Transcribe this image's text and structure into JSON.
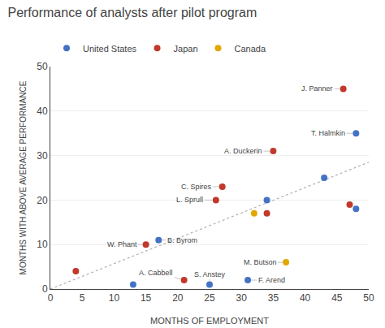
{
  "chart_data": {
    "type": "scatter",
    "title": "Performance of analysts after pilot program",
    "xlabel": "MONTHS OF EMPLOYMENT",
    "ylabel": "MONTHS WITH ABOVE AVERAGE PERFORMANCE",
    "xlim": [
      0,
      50
    ],
    "ylim": [
      0,
      50
    ],
    "xticks": [
      0,
      5,
      10,
      15,
      20,
      25,
      30,
      35,
      40,
      45,
      50
    ],
    "yticks": [
      0,
      10,
      20,
      30,
      40,
      50
    ],
    "grid": "y",
    "legend": "upper left",
    "marker": "circle",
    "series": [
      {
        "type": "line",
        "line_style": "dotted",
        "color": "#b0b0b0",
        "x": [
          0,
          50
        ],
        "y": [
          0,
          28.5
        ]
      },
      {
        "name": "United States",
        "color": "#4472C4",
        "x": [
          13,
          17,
          34,
          43,
          48,
          48,
          25,
          31
        ],
        "y": [
          1,
          11,
          20,
          25,
          18,
          35,
          1,
          2
        ]
      },
      {
        "name": "Japan",
        "color": "#C0392B",
        "x": [
          4,
          15,
          21,
          26,
          27,
          34,
          35,
          46,
          47
        ],
        "y": [
          4,
          10,
          2,
          20,
          23,
          17,
          31,
          45,
          19
        ]
      },
      {
        "name": "Canada",
        "color": "#E2A800",
        "x": [
          32,
          37
        ],
        "y": [
          17,
          6
        ]
      }
    ],
    "annotations": [
      {
        "text": "B. Byrom",
        "x": 17,
        "y": 11
      },
      {
        "text": "W. Phant",
        "x": 15,
        "y": 10
      },
      {
        "text": "A. Cabbell",
        "x": 21,
        "y": 2
      },
      {
        "text": "L. Sprull",
        "x": 26,
        "y": 20
      },
      {
        "text": "C. Spires",
        "x": 27,
        "y": 23
      },
      {
        "text": "A. Duckerin",
        "x": 35,
        "y": 31
      },
      {
        "text": "J. Panner",
        "x": 46,
        "y": 45
      },
      {
        "text": "T. Halmkin",
        "x": 48,
        "y": 35
      },
      {
        "text": "S. Anstey",
        "x": 25,
        "y": 1
      },
      {
        "text": "F. Arend",
        "x": 31,
        "y": 2
      },
      {
        "text": "M. Butson",
        "x": 37,
        "y": 6
      }
    ]
  }
}
